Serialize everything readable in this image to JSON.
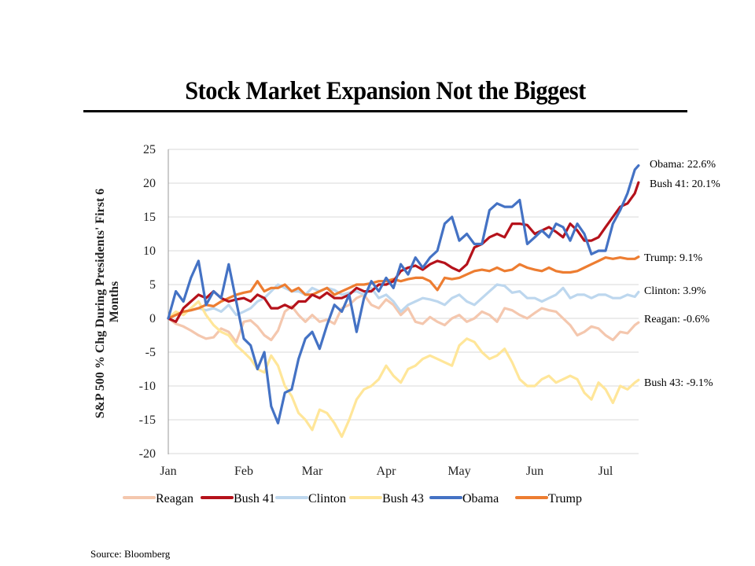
{
  "chart_data": {
    "type": "line",
    "title": "Stock Market Expansion Not the Biggest",
    "xlabel": "",
    "ylabel": "S&P 500 % Chg During Presidents' First 6 Months",
    "ylim": [
      -20,
      25
    ],
    "yticks": [
      25,
      20,
      15,
      10,
      5,
      0,
      -5,
      -10,
      -15,
      -20
    ],
    "x_ticks": [
      "Jan",
      "Feb",
      "Mar",
      "Apr",
      "May",
      "Jun",
      "Jul"
    ],
    "grid": true,
    "legend_position": "bottom",
    "x_unit": "months since start of term",
    "x": [
      0,
      0.1,
      0.2,
      0.3,
      0.4,
      0.5,
      0.6,
      0.7,
      0.8,
      0.9,
      1.0,
      1.1,
      1.2,
      1.3,
      1.4,
      1.5,
      1.6,
      1.7,
      1.8,
      1.9,
      2.0,
      2.1,
      2.2,
      2.3,
      2.4,
      2.5,
      2.6,
      2.7,
      2.8,
      2.9,
      3.0,
      3.1,
      3.2,
      3.3,
      3.4,
      3.5,
      3.6,
      3.7,
      3.8,
      3.9,
      4.0,
      4.1,
      4.2,
      4.3,
      4.4,
      4.5,
      4.6,
      4.7,
      4.8,
      4.9,
      5.0,
      5.1,
      5.2,
      5.3,
      5.4,
      5.5,
      5.6,
      5.7,
      5.8,
      5.9,
      6.0,
      6.1,
      6.2,
      6.3,
      6.4,
      6.45
    ],
    "series": [
      {
        "name": "Reagan",
        "color": "#f4c7ae",
        "end_label": "Reagan:  -0.6%",
        "values": [
          0,
          -0.8,
          -1.2,
          -1.8,
          -2.5,
          -3,
          -2.8,
          -1.5,
          -2,
          -3.5,
          -0.5,
          -0.3,
          -1.2,
          -2.5,
          -3.2,
          -1.8,
          1,
          1.8,
          0.5,
          -0.5,
          0.5,
          -0.5,
          -0.2,
          -0.8,
          1.5,
          2,
          3,
          3.5,
          2,
          1.5,
          2.8,
          2,
          0.5,
          1.5,
          -0.5,
          -0.8,
          0.2,
          -0.5,
          -1,
          0,
          0.5,
          -0.5,
          0,
          1,
          0.5,
          -0.5,
          1.5,
          1.2,
          0.5,
          0,
          0.8,
          1.5,
          1.2,
          1,
          0,
          -1,
          -2.5,
          -2,
          -1.2,
          -1.5,
          -2.5,
          -3.2,
          -2,
          -2.2,
          -1,
          -0.6
        ]
      },
      {
        "name": "Bush 41",
        "color": "#b5121b",
        "end_label": "Bush 41: 20.1%",
        "values": [
          0,
          -0.5,
          1.5,
          2.5,
          3.5,
          3,
          4,
          3,
          2.5,
          2.8,
          3,
          2.5,
          3.5,
          3,
          1.5,
          1.5,
          2,
          1.5,
          2.5,
          2.5,
          3.5,
          3,
          3.8,
          3,
          3,
          3.5,
          4.5,
          4,
          4,
          5,
          5,
          5.5,
          7,
          7.5,
          7.8,
          7.2,
          8,
          8.5,
          8.2,
          7.5,
          7,
          8,
          10.5,
          11,
          12,
          12.5,
          12,
          14,
          14,
          13.8,
          12.5,
          13,
          13.5,
          12.8,
          12,
          14,
          13,
          11.5,
          11.5,
          12,
          13.5,
          15,
          16.5,
          17,
          18.5,
          20.1
        ]
      },
      {
        "name": "Clinton",
        "color": "#bdd7ee",
        "end_label": "Clinton:  3.9%",
        "values": [
          0,
          0.5,
          1,
          1.2,
          1.5,
          1.2,
          1.5,
          1,
          2,
          0.5,
          1,
          1.5,
          2.5,
          3,
          4,
          5,
          4.5,
          4,
          4,
          3.5,
          4.5,
          4,
          4.5,
          4.2,
          3.5,
          3.8,
          4,
          3.5,
          4.5,
          3,
          3.5,
          2.5,
          1,
          2,
          2.5,
          3,
          2.8,
          2.5,
          2,
          3,
          3.5,
          2.5,
          2,
          3,
          4,
          5,
          4.8,
          3.8,
          4,
          3,
          3,
          2.5,
          3,
          3.5,
          4.5,
          3,
          3.5,
          3.5,
          3,
          3.5,
          3.5,
          3,
          3,
          3.5,
          3.2,
          3.9
        ]
      },
      {
        "name": "Bush 43",
        "color": "#ffe699",
        "end_label": "Bush 43: -9.1%",
        "values": [
          0,
          1,
          0.5,
          1.5,
          2.5,
          0.5,
          -1,
          -2,
          -2.5,
          -4,
          -5,
          -6,
          -7.5,
          -8,
          -5.5,
          -7,
          -10,
          -11.5,
          -14,
          -15,
          -16.5,
          -13.5,
          -14,
          -15.5,
          -17.5,
          -15,
          -12,
          -10.5,
          -10,
          -9,
          -7,
          -8.5,
          -9.5,
          -7.5,
          -7,
          -6,
          -5.5,
          -6,
          -6.5,
          -7,
          -4,
          -3,
          -3.5,
          -5,
          -6,
          -5.5,
          -4.5,
          -6.5,
          -9,
          -10,
          -10,
          -9,
          -8.5,
          -9.5,
          -9,
          -8.5,
          -9,
          -11,
          -12,
          -9.5,
          -10.5,
          -12.5,
          -10,
          -10.5,
          -9.5,
          -9.1
        ]
      },
      {
        "name": "Obama",
        "color": "#4472c4",
        "end_label": "Obama:  22.6%",
        "values": [
          0,
          4,
          2.5,
          6,
          8.5,
          2,
          4,
          3,
          8,
          2.5,
          -3,
          -4,
          -7.5,
          -5,
          -13,
          -15.5,
          -11,
          -10.5,
          -6,
          -3,
          -2,
          -4.5,
          -1,
          2,
          1,
          3.5,
          -2,
          3,
          5.5,
          4,
          6,
          4.5,
          8,
          6.5,
          9,
          7.5,
          9,
          10,
          14,
          15,
          11.5,
          12.5,
          11,
          11,
          16,
          17,
          16.5,
          16.5,
          17.5,
          11,
          12,
          13,
          12,
          14,
          13.5,
          11.5,
          14,
          12.5,
          9.5,
          10,
          10,
          14,
          16,
          18.5,
          22,
          22.6
        ]
      },
      {
        "name": "Trump",
        "color": "#ed7d31",
        "end_label": "Trump:  9.1%",
        "values": [
          0,
          0.5,
          1,
          1.2,
          1.5,
          2,
          1.8,
          2.5,
          3,
          3.5,
          3.8,
          4,
          5.5,
          4,
          4.5,
          4.5,
          5,
          4,
          4.5,
          3.5,
          3.5,
          4,
          4.5,
          3.5,
          4,
          4.5,
          5,
          5,
          5.2,
          5.5,
          5.5,
          5.8,
          5.5,
          5.8,
          6,
          6,
          5.5,
          4.2,
          6,
          5.8,
          6,
          6.5,
          7,
          7.2,
          7,
          7.5,
          7,
          7.2,
          8,
          7.5,
          7.2,
          7,
          7.5,
          7,
          6.8,
          6.8,
          7,
          7.5,
          8,
          8.5,
          9,
          8.8,
          9,
          8.8,
          8.8,
          9.1
        ]
      }
    ]
  },
  "source": "Source: Bloomberg"
}
